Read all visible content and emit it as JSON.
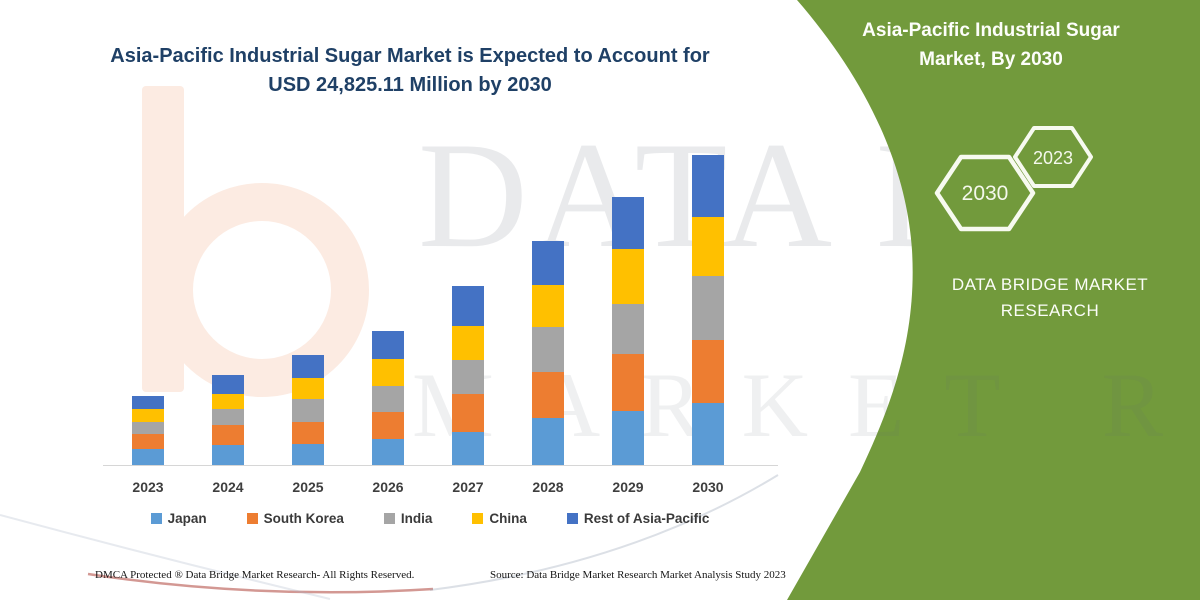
{
  "header": {
    "title_line1": "Asia-Pacific Industrial Sugar Market is Expected to Account for",
    "title_line2": "USD 24,825.11 Million by 2030"
  },
  "side_panel": {
    "bg_color": "#729A3C",
    "title_line1": "Asia-Pacific Industrial Sugar",
    "title_line2": "Market, By 2030",
    "hexagon_left_label": "2030",
    "hexagon_right_label": "2023",
    "brand_line1": "DATA BRIDGE MARKET",
    "brand_line2": "RESEARCH"
  },
  "watermarks": {
    "big_text": "DATA BRIDGE",
    "second_text": "MARKET RESEARCH",
    "logo_color": "#fcebe2"
  },
  "chart_data": {
    "type": "bar",
    "stacked": true,
    "title": "Asia-Pacific Industrial Sugar Market is Expected to Account for USD 24,825.11 Million by 2030",
    "unit": "USD Million (values estimated from bar heights; y-axis not labeled in source)",
    "categories": [
      "2023",
      "2024",
      "2025",
      "2026",
      "2027",
      "2028",
      "2029",
      "2030"
    ],
    "series": [
      {
        "name": "Japan",
        "color": "#5B9BD5",
        "values": [
          1250,
          1600,
          1680,
          2050,
          2630,
          3780,
          4360,
          4925
        ]
      },
      {
        "name": "South Korea",
        "color": "#ED7D31",
        "values": [
          1250,
          1600,
          1780,
          2180,
          3090,
          3670,
          4530,
          5055
        ]
      },
      {
        "name": "India",
        "color": "#A5A5A5",
        "values": [
          960,
          1250,
          1810,
          2080,
          2710,
          3570,
          3990,
          5110
        ]
      },
      {
        "name": "China",
        "color": "#FFC000",
        "values": [
          1060,
          1250,
          1700,
          2190,
          2710,
          3350,
          4410,
          4785
        ]
      },
      {
        "name": "Rest of Asia-Pacific",
        "color": "#4472C4",
        "values": [
          990,
          1520,
          1810,
          2200,
          3140,
          3510,
          4180,
          4950
        ]
      }
    ],
    "totals": [
      5510,
      7220,
      8780,
      10700,
      14280,
      17880,
      21470,
      24825.11
    ],
    "highlight_value_2030": "USD 24,825.11 Million",
    "xlabel": "",
    "ylabel": "",
    "y_axis_visible": false,
    "grid": false,
    "legend_position": "bottom"
  },
  "footer": {
    "left_text": "DMCA Protected ® Data Bridge Market Research-  All Rights Reserved.",
    "right_text": "Source: Data Bridge Market Research  Market Analysis Study 2023"
  }
}
